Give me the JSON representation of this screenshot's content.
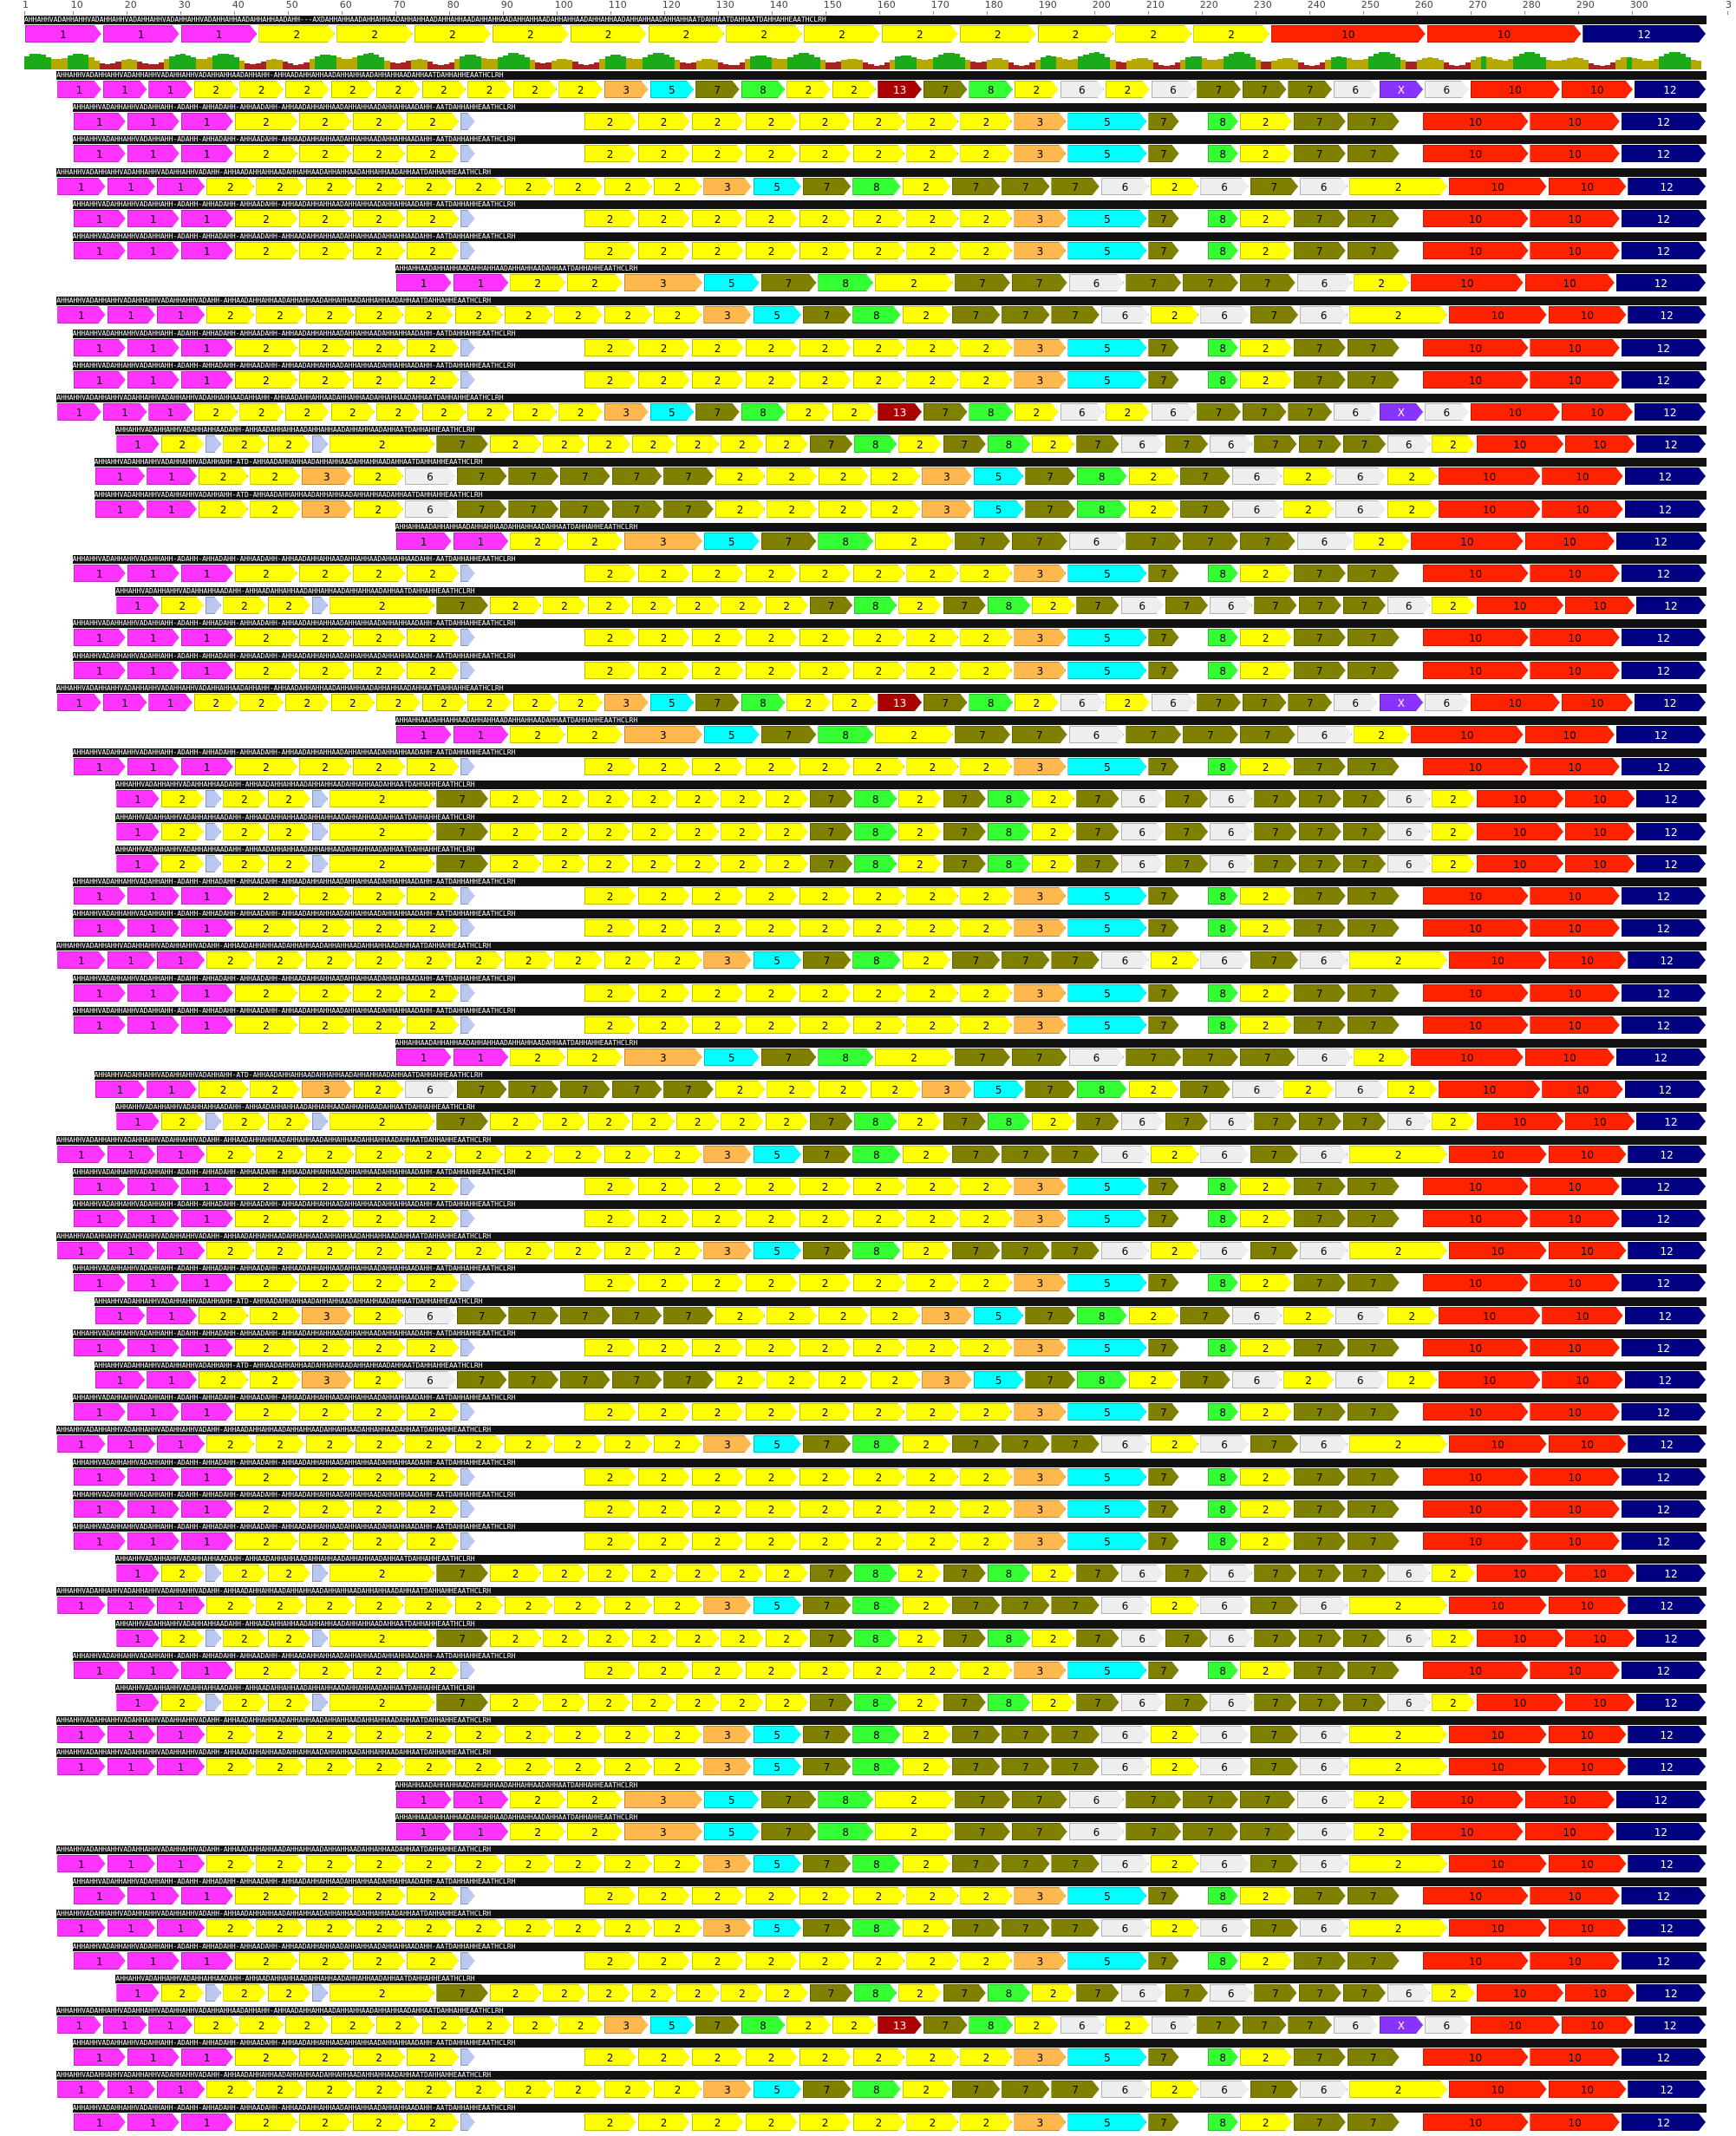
{
  "ruler": {
    "ticks": [
      "1",
      "10",
      "20",
      "30",
      "40",
      "50",
      "60",
      "70",
      "80",
      "90",
      "100",
      "110",
      "120",
      "130",
      "140",
      "150",
      "160",
      "170",
      "180",
      "190",
      "200",
      "210",
      "220",
      "230",
      "240",
      "250",
      "260",
      "270",
      "280",
      "290",
      "300",
      "3"
    ]
  },
  "consensus": {
    "sequence": "AHHAHHVADAHHAHHVADAHHAHHVADAHHAHHVADAHHAHHVADAHHAHHAADAHHAHHAADAHH---AXDAHHAHHAADAHHAHHAADAHHAHHAADAHHAHHAADAHHAHHAADAHHAHHAADAHHAHHAADAHHAHHAADAHHAHHAADAHHAHHAATDAHHAATDAHHAATDAHHAHHEAATHCLRH",
    "domains": [
      {
        "label": "1",
        "color": "#ff33ff"
      },
      {
        "label": "1",
        "color": "#ff33ff"
      },
      {
        "label": "1",
        "color": "#ff33ff"
      },
      {
        "label": "2",
        "color": "#ffff00"
      },
      {
        "label": "2",
        "color": "#ffff00"
      },
      {
        "label": "2",
        "color": "#ffff00"
      },
      {
        "label": "2",
        "color": "#ffff00"
      },
      {
        "label": "2",
        "color": "#ffff00"
      },
      {
        "label": "2",
        "color": "#ffff00"
      },
      {
        "label": "2",
        "color": "#ffff00"
      },
      {
        "label": "2",
        "color": "#ffff00"
      },
      {
        "label": "2",
        "color": "#ffff00"
      },
      {
        "label": "2",
        "color": "#ffff00"
      },
      {
        "label": "2",
        "color": "#ffff00"
      },
      {
        "label": "2",
        "color": "#ffff00"
      },
      {
        "label": "2",
        "color": "#ffff00"
      },
      {
        "label": "10",
        "color": "#ff2200"
      },
      {
        "label": "10",
        "color": "#ff2200"
      },
      {
        "label": "12",
        "color": "#000080"
      }
    ]
  },
  "legend_colors": {
    "1": "#ff33ff",
    "2": "#ffff00",
    "3": "#ffb84d",
    "5": "#00ffff",
    "6": "#eeeeee",
    "7": "#808000",
    "8": "#33ff33",
    "10": "#ff2200",
    "12": "#000080",
    "13": "#aa0000",
    "X": "#8833ff",
    "PAD": "#b8c8f0"
  },
  "row_templates": {
    "A": {
      "start": 7,
      "strip": "AHHAHHVADAHHAHHVADAHHAHHVADAHHAHHVADAHHAHHAADAHHAHH-AHHAADAHHAHHAADAHHAHHAADAHHAHHAADAHHAATDAHHAHHEAATHCLRH",
      "doms": [
        [
          "1",
          1
        ],
        [
          "1",
          1
        ],
        [
          "1",
          1
        ],
        [
          "2",
          1
        ],
        [
          "2",
          1
        ],
        [
          "2",
          1
        ],
        [
          "2",
          1
        ],
        [
          "2",
          1
        ],
        [
          "2",
          1
        ],
        [
          "2",
          1
        ],
        [
          "2",
          1
        ],
        [
          "2",
          1
        ],
        [
          "3",
          1
        ],
        [
          "5",
          1
        ],
        [
          "7",
          1
        ],
        [
          "8",
          1
        ],
        [
          "2",
          1
        ],
        [
          "2",
          1
        ],
        [
          "13",
          1
        ],
        [
          "7",
          1
        ],
        [
          "8",
          1
        ],
        [
          "2",
          1
        ],
        [
          "6",
          1
        ],
        [
          "2",
          1
        ],
        [
          "6",
          1
        ],
        [
          "7",
          1
        ],
        [
          "7",
          1
        ],
        [
          "7",
          1
        ],
        [
          "6",
          1
        ],
        [
          "X",
          1
        ],
        [
          "6",
          1
        ],
        [
          "10",
          2
        ],
        [
          "10",
          1.6
        ],
        [
          "12",
          1.6
        ]
      ]
    },
    "B": {
      "start": 10,
      "strip": "AHHAHHVADAHHAHHVADAHHAHH-ADAHH-AHHADAHH-AHHAADAHH-AHHAADAHHAHHAADAHHAHHAADAHHAHHAADAHH-AATDAHHAHHEAATHCLRH",
      "doms": [
        [
          "1",
          1
        ],
        [
          "1",
          1
        ],
        [
          "1",
          1
        ],
        [
          "2",
          1.2
        ],
        [
          "2",
          1
        ],
        [
          "2",
          1
        ],
        [
          "2",
          1
        ],
        [
          "PAD",
          0.3
        ],
        [
          "GAP",
          2
        ],
        [
          "2",
          1
        ],
        [
          "2",
          1
        ],
        [
          "2",
          1
        ],
        [
          "2",
          1
        ],
        [
          "2",
          1
        ],
        [
          "2",
          1
        ],
        [
          "2",
          1
        ],
        [
          "2",
          1
        ],
        [
          "3",
          1
        ],
        [
          "5",
          1.5
        ],
        [
          "7",
          0.6
        ],
        [
          "GAP",
          0.5
        ],
        [
          "8",
          0.6
        ],
        [
          "2",
          1
        ],
        [
          "7",
          1
        ],
        [
          "7",
          1
        ],
        [
          "GAP",
          0.4
        ],
        [
          "10",
          2
        ],
        [
          "10",
          1.7
        ],
        [
          "12",
          1.6
        ]
      ]
    },
    "C": {
      "start": 7,
      "strip": "AHHAHHVADAHHAHHVADAHHAHHVADAHHAHHVADAHH-AHHAADAHHAHHAADAHHAHHAADAHHAHHAADAHHAHHAADAHHAATDAHHAHHEAATHCLRH",
      "doms": [
        [
          "1",
          1
        ],
        [
          "1",
          1
        ],
        [
          "1",
          1
        ],
        [
          "2",
          1
        ],
        [
          "2",
          1
        ],
        [
          "2",
          1
        ],
        [
          "2",
          1
        ],
        [
          "2",
          1
        ],
        [
          "2",
          1
        ],
        [
          "2",
          1
        ],
        [
          "2",
          1
        ],
        [
          "2",
          1
        ],
        [
          "2",
          1
        ],
        [
          "3",
          1
        ],
        [
          "5",
          1
        ],
        [
          "7",
          1
        ],
        [
          "8",
          1
        ],
        [
          "2",
          1
        ],
        [
          "7",
          1
        ],
        [
          "7",
          1
        ],
        [
          "7",
          1
        ],
        [
          "6",
          1
        ],
        [
          "2",
          1
        ],
        [
          "6",
          1
        ],
        [
          "7",
          1
        ],
        [
          "6",
          1
        ],
        [
          "2",
          2
        ],
        [
          "10",
          2
        ],
        [
          "10",
          1.6
        ],
        [
          "12",
          1.6
        ]
      ]
    },
    "D": {
      "start": 18,
      "strip": "AHHAHHVADAHHAHHVADAHHAHHAADAHH-AHHAADAHHAHHAADAHHAHHAADAHHAHHAADAHHAATDAHHAHHEAATHCLRH",
      "doms": [
        [
          "1",
          1
        ],
        [
          "2",
          1
        ],
        [
          "PAD",
          0.4
        ],
        [
          "2",
          1
        ],
        [
          "2",
          1
        ],
        [
          "PAD",
          0.4
        ],
        [
          "2",
          2.4
        ],
        [
          "7",
          1.2
        ],
        [
          "2",
          1.2
        ],
        [
          "2",
          1
        ],
        [
          "2",
          1
        ],
        [
          "2",
          1
        ],
        [
          "2",
          1
        ],
        [
          "2",
          1
        ],
        [
          "2",
          1
        ],
        [
          "7",
          1
        ],
        [
          "8",
          1
        ],
        [
          "2",
          1
        ],
        [
          "7",
          1
        ],
        [
          "8",
          1
        ],
        [
          "2",
          1
        ],
        [
          "7",
          1
        ],
        [
          "6",
          1
        ],
        [
          "7",
          1
        ],
        [
          "6",
          1
        ],
        [
          "7",
          1
        ],
        [
          "7",
          1
        ],
        [
          "7",
          1
        ],
        [
          "6",
          1
        ],
        [
          "2",
          1
        ],
        [
          "10",
          2
        ],
        [
          "10",
          1.6
        ],
        [
          "12",
          1.6
        ]
      ]
    },
    "E": {
      "start": 70,
      "strip": "AHHAHHAADAHHAHHAADAHHAHHAADAHHAHHAADAHHAATDAHHAHHEAATHCLRH",
      "doms": [
        [
          "1",
          1
        ],
        [
          "1",
          1
        ],
        [
          "2",
          1
        ],
        [
          "2",
          1
        ],
        [
          "3",
          1.4
        ],
        [
          "5",
          1
        ],
        [
          "7",
          1
        ],
        [
          "8",
          1
        ],
        [
          "2",
          1.4
        ],
        [
          "7",
          1
        ],
        [
          "7",
          1
        ],
        [
          "6",
          1
        ],
        [
          "7",
          1
        ],
        [
          "7",
          1
        ],
        [
          "7",
          1
        ],
        [
          "6",
          1
        ],
        [
          "2",
          1
        ],
        [
          "10",
          2
        ],
        [
          "10",
          1.6
        ],
        [
          "12",
          1.6
        ]
      ]
    },
    "F": {
      "start": 14,
      "strip": "AHHAHHVADAHHAHHVADAHHAHHVADAHHAHH-ATD-AHHAADAHHAHHAADAHHAHHAADAHHAHHAADAHHAATDAHHAHHEAATHCLRH",
      "doms": [
        [
          "1",
          1
        ],
        [
          "1",
          1
        ],
        [
          "2",
          1
        ],
        [
          "2",
          1
        ],
        [
          "3",
          1
        ],
        [
          "2",
          1
        ],
        [
          "6",
          1
        ],
        [
          "7",
          1
        ],
        [
          "7",
          1
        ],
        [
          "7",
          1
        ],
        [
          "7",
          1
        ],
        [
          "7",
          1
        ],
        [
          "2",
          1
        ],
        [
          "2",
          1
        ],
        [
          "2",
          1
        ],
        [
          "2",
          1
        ],
        [
          "3",
          1
        ],
        [
          "5",
          1
        ],
        [
          "7",
          1
        ],
        [
          "8",
          1
        ],
        [
          "2",
          1
        ],
        [
          "7",
          1
        ],
        [
          "6",
          1
        ],
        [
          "2",
          1
        ],
        [
          "6",
          1
        ],
        [
          "2",
          1
        ],
        [
          "10",
          2
        ],
        [
          "10",
          1.6
        ],
        [
          "12",
          1.6
        ]
      ]
    }
  },
  "rows": [
    "A",
    "B",
    "B",
    "C",
    "B",
    "B",
    "E",
    "C",
    "B",
    "B",
    "A",
    "D",
    "F",
    "F",
    "E",
    "B",
    "D",
    "B",
    "B",
    "A",
    "E",
    "B",
    "D",
    "D",
    "D",
    "B",
    "B",
    "C",
    "B",
    "B",
    "E",
    "F",
    "D",
    "C",
    "B",
    "B",
    "C",
    "B",
    "F",
    "B",
    "F",
    "B",
    "C",
    "B",
    "B",
    "B",
    "D",
    "C",
    "D",
    "B",
    "D",
    "C",
    "C",
    "E",
    "E",
    "C",
    "B",
    "C",
    "B",
    "D",
    "A",
    "B",
    "C",
    "B"
  ]
}
